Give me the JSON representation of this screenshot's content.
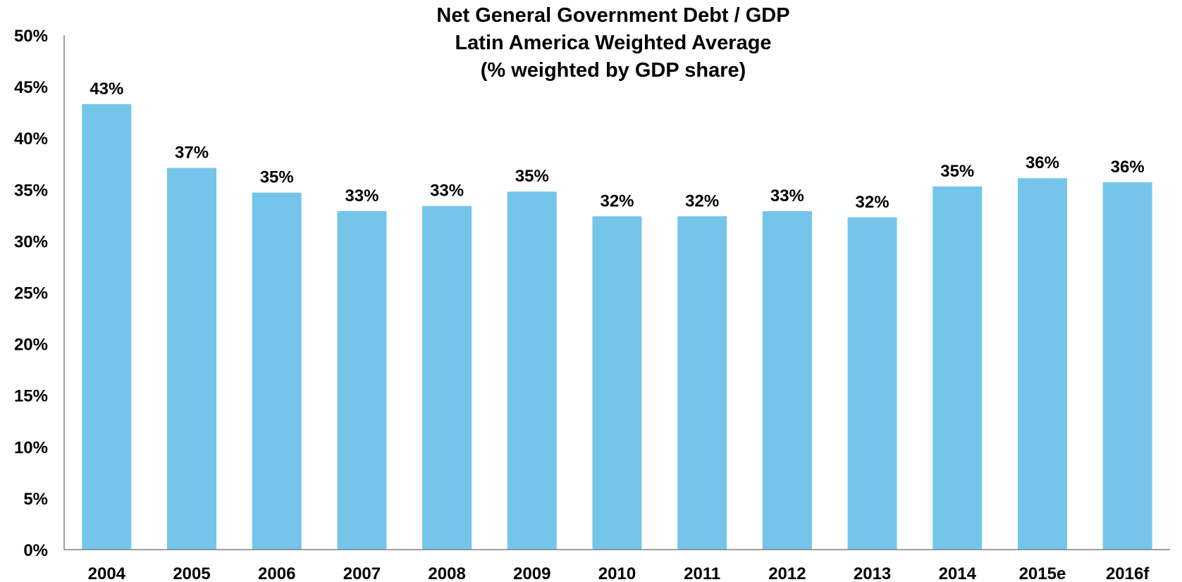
{
  "chart_data": {
    "type": "bar",
    "title_lines": [
      "Net General Government Debt / GDP",
      "Latin America Weighted Average",
      "(%  weighted by GDP share)"
    ],
    "categories": [
      "2004",
      "2005",
      "2006",
      "2007",
      "2008",
      "2009",
      "2010",
      "2011",
      "2012",
      "2013",
      "2014",
      "2015e",
      "2016f"
    ],
    "values": [
      43.3,
      37.1,
      34.7,
      32.9,
      33.4,
      34.8,
      32.4,
      32.4,
      32.9,
      32.3,
      35.3,
      36.1,
      35.7
    ],
    "data_labels": [
      "43%",
      "37%",
      "35%",
      "33%",
      "33%",
      "35%",
      "32%",
      "32%",
      "33%",
      "32%",
      "35%",
      "36%",
      "36%"
    ],
    "y_ticks": [
      "0%",
      "5%",
      "10%",
      "15%",
      "20%",
      "25%",
      "30%",
      "35%",
      "40%",
      "45%",
      "50%"
    ],
    "ylim": [
      0,
      50
    ],
    "y_tick_step": 5,
    "grid": false,
    "legend": "none",
    "bar_color": "#75C5EA",
    "axis_color": "#808080"
  }
}
